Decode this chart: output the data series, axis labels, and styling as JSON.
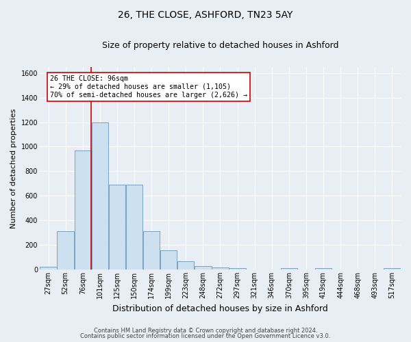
{
  "title": "26, THE CLOSE, ASHFORD, TN23 5AY",
  "subtitle": "Size of property relative to detached houses in Ashford",
  "xlabel": "Distribution of detached houses by size in Ashford",
  "ylabel": "Number of detached properties",
  "bar_color": "#cce0f0",
  "bar_edge_color": "#6699bb",
  "categories": [
    "27sqm",
    "52sqm",
    "76sqm",
    "101sqm",
    "125sqm",
    "150sqm",
    "174sqm",
    "199sqm",
    "223sqm",
    "248sqm",
    "272sqm",
    "297sqm",
    "321sqm",
    "346sqm",
    "370sqm",
    "395sqm",
    "419sqm",
    "444sqm",
    "468sqm",
    "493sqm",
    "517sqm"
  ],
  "values": [
    20,
    310,
    970,
    1200,
    690,
    690,
    310,
    155,
    65,
    25,
    15,
    10,
    0,
    0,
    10,
    0,
    10,
    0,
    0,
    0,
    10
  ],
  "ylim": [
    0,
    1650
  ],
  "yticks": [
    0,
    200,
    400,
    600,
    800,
    1000,
    1200,
    1400,
    1600
  ],
  "vline_color": "#cc0000",
  "vline_x_index": 2.5,
  "annotation_text": "26 THE CLOSE: 96sqm\n← 29% of detached houses are smaller (1,105)\n70% of semi-detached houses are larger (2,626) →",
  "annotation_box_color": "#ffffff",
  "annotation_box_edge": "#cc0000",
  "footer1": "Contains HM Land Registry data © Crown copyright and database right 2024.",
  "footer2": "Contains public sector information licensed under the Open Government Licence v3.0.",
  "background_color": "#e8eef4",
  "plot_bg_color": "#e8eef4",
  "grid_color": "#ffffff",
  "title_fontsize": 10,
  "subtitle_fontsize": 9,
  "ylabel_fontsize": 8,
  "xlabel_fontsize": 9,
  "tick_fontsize": 7,
  "bar_width": 0.97
}
